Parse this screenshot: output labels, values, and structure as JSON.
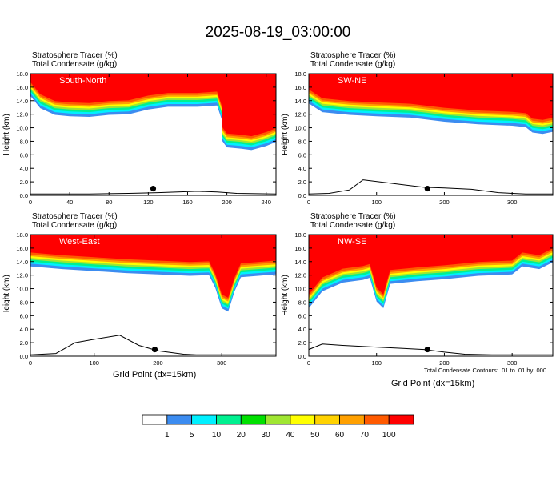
{
  "title": "2025-08-19_03:00:00",
  "field_labels": [
    "Stratosphere Tracer   (%)",
    "Total Condensate   (g/kg)"
  ],
  "footnote": "Total Condensate Contours: .01 to .01 by .000",
  "colorbar": {
    "levels": [
      "1",
      "5",
      "10",
      "20",
      "30",
      "40",
      "50",
      "60",
      "70",
      "100"
    ],
    "colors": [
      "#ffffff",
      "#3c8cf0",
      "#00f0ff",
      "#00f090",
      "#00e000",
      "#a0e632",
      "#ffff00",
      "#ffd200",
      "#ffa000",
      "#ff5a00",
      "#ff0000"
    ]
  },
  "chart_data": [
    {
      "type": "contour",
      "panel_title": "South-North",
      "ylabel": "Height (km)",
      "xlabel": "",
      "xlim": [
        0,
        250
      ],
      "ylim": [
        0,
        18
      ],
      "xticks": [
        0,
        40,
        80,
        120,
        160,
        200,
        240
      ],
      "yticks": [
        "0.0",
        "2.0",
        "4.0",
        "6.0",
        "8.0",
        "10.0",
        "12.0",
        "14.0",
        "16.0",
        "18.0"
      ],
      "tropopause": [
        [
          0,
          15.6
        ],
        [
          10,
          13.8
        ],
        [
          25,
          12.8
        ],
        [
          40,
          12.6
        ],
        [
          60,
          12.5
        ],
        [
          80,
          12.8
        ],
        [
          100,
          12.9
        ],
        [
          120,
          13.6
        ],
        [
          140,
          14.0
        ],
        [
          170,
          14.0
        ],
        [
          190,
          14.2
        ],
        [
          195,
          12.0
        ],
        [
          195,
          9.0
        ],
        [
          200,
          8.0
        ],
        [
          215,
          7.8
        ],
        [
          225,
          7.6
        ],
        [
          240,
          8.2
        ],
        [
          250,
          8.8
        ]
      ],
      "marker": [
        125,
        1.0
      ],
      "terrain": [
        [
          0,
          0.2
        ],
        [
          60,
          0.2
        ],
        [
          100,
          0.3
        ],
        [
          130,
          0.4
        ],
        [
          170,
          0.6
        ],
        [
          190,
          0.5
        ],
        [
          210,
          0.3
        ],
        [
          250,
          0.2
        ]
      ]
    },
    {
      "type": "contour",
      "panel_title": "SW-NE",
      "ylabel": "Height (km)",
      "xlabel": "",
      "xlim": [
        0,
        360
      ],
      "ylim": [
        0,
        18
      ],
      "xticks": [
        0,
        100,
        200,
        300
      ],
      "yticks": [
        "0.0",
        "2.0",
        "4.0",
        "6.0",
        "8.0",
        "10.0",
        "12.0",
        "14.0",
        "16.0",
        "18.0"
      ],
      "tropopause": [
        [
          0,
          14.5
        ],
        [
          20,
          13.2
        ],
        [
          60,
          12.8
        ],
        [
          100,
          12.6
        ],
        [
          150,
          12.4
        ],
        [
          200,
          11.8
        ],
        [
          250,
          11.4
        ],
        [
          300,
          11.2
        ],
        [
          320,
          11.0
        ],
        [
          330,
          10.2
        ],
        [
          345,
          10.0
        ],
        [
          360,
          10.3
        ]
      ],
      "marker": [
        175,
        1.0
      ],
      "terrain": [
        [
          0,
          0.2
        ],
        [
          30,
          0.3
        ],
        [
          60,
          0.8
        ],
        [
          80,
          2.3
        ],
        [
          120,
          1.8
        ],
        [
          170,
          1.2
        ],
        [
          200,
          1.1
        ],
        [
          240,
          0.9
        ],
        [
          280,
          0.4
        ],
        [
          320,
          0.2
        ],
        [
          360,
          0.2
        ]
      ]
    },
    {
      "type": "contour",
      "panel_title": "West-East",
      "ylabel": "Height (km)",
      "xlabel": "Grid Point (dx=15km)",
      "xlim": [
        0,
        385
      ],
      "ylim": [
        0,
        18
      ],
      "xticks": [
        0,
        100,
        200,
        300
      ],
      "yticks": [
        "0.0",
        "2.0",
        "4.0",
        "6.0",
        "8.0",
        "10.0",
        "12.0",
        "14.0",
        "16.0",
        "18.0"
      ],
      "tropopause": [
        [
          0,
          14.2
        ],
        [
          50,
          13.8
        ],
        [
          100,
          13.5
        ],
        [
          150,
          13.2
        ],
        [
          200,
          13.0
        ],
        [
          250,
          12.8
        ],
        [
          280,
          12.9
        ],
        [
          290,
          11.0
        ],
        [
          300,
          8.0
        ],
        [
          310,
          7.5
        ],
        [
          320,
          10.5
        ],
        [
          330,
          12.6
        ],
        [
          385,
          13.0
        ]
      ],
      "marker": [
        195,
        1.0
      ],
      "terrain": [
        [
          0,
          0.2
        ],
        [
          40,
          0.4
        ],
        [
          70,
          2.0
        ],
        [
          100,
          2.5
        ],
        [
          140,
          3.1
        ],
        [
          170,
          1.6
        ],
        [
          200,
          0.8
        ],
        [
          240,
          0.3
        ],
        [
          260,
          0.2
        ],
        [
          385,
          0.2
        ]
      ]
    },
    {
      "type": "contour",
      "panel_title": "NW-SE",
      "ylabel": "Height (km)",
      "xlabel": "Grid Point (dx=15km)",
      "xlim": [
        0,
        360
      ],
      "ylim": [
        0,
        18
      ],
      "xticks": [
        0,
        100,
        200,
        300
      ],
      "yticks": [
        "0.0",
        "2.0",
        "4.0",
        "6.0",
        "8.0",
        "10.0",
        "12.0",
        "14.0",
        "16.0",
        "18.0"
      ],
      "tropopause": [
        [
          0,
          8.0
        ],
        [
          20,
          10.5
        ],
        [
          50,
          11.8
        ],
        [
          80,
          12.2
        ],
        [
          90,
          12.5
        ],
        [
          100,
          9.0
        ],
        [
          110,
          8.0
        ],
        [
          120,
          11.6
        ],
        [
          160,
          12.0
        ],
        [
          200,
          12.3
        ],
        [
          250,
          12.8
        ],
        [
          300,
          13.0
        ],
        [
          315,
          14.2
        ],
        [
          340,
          13.8
        ],
        [
          360,
          14.8
        ]
      ],
      "marker": [
        175,
        1.0
      ],
      "terrain": [
        [
          0,
          1.0
        ],
        [
          20,
          1.8
        ],
        [
          50,
          1.6
        ],
        [
          90,
          1.4
        ],
        [
          130,
          1.2
        ],
        [
          170,
          1.0
        ],
        [
          200,
          0.6
        ],
        [
          230,
          0.3
        ],
        [
          270,
          0.2
        ],
        [
          360,
          0.2
        ]
      ]
    }
  ]
}
